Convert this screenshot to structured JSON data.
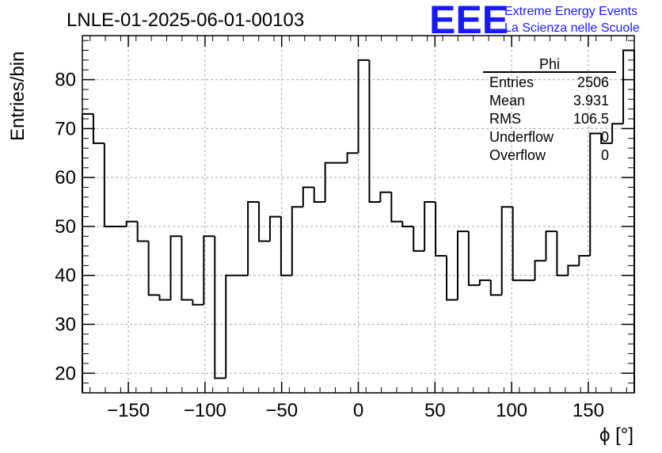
{
  "page_title": "LNLE-01-2025-06-01-00103",
  "logo": {
    "mark": "EEE",
    "line1": "Extreme Energy Events",
    "line2": "La Scienza nelle Scuole",
    "color": "#1a1aff"
  },
  "stats_box": {
    "name": "Phi",
    "rows": [
      {
        "label": "Entries",
        "value": "2506"
      },
      {
        "label": "Mean",
        "value": "3.931"
      },
      {
        "label": "RMS",
        "value": "106.5"
      },
      {
        "label": "Underflow",
        "value": "0"
      },
      {
        "label": "Overflow",
        "value": "0"
      }
    ]
  },
  "chart_data": {
    "type": "bar",
    "style": "step-histogram",
    "title": "LNLE-01-2025-06-01-00103",
    "xlabel": "ϕ [°]",
    "ylabel": "Entries/bin",
    "xlim": [
      -180,
      180
    ],
    "ylim": [
      16,
      89
    ],
    "bin_width": 7.2,
    "x_ticks": [
      -150,
      -100,
      -50,
      0,
      50,
      100,
      150
    ],
    "x_tick_labels": [
      "−150",
      "−100",
      "−50",
      "0",
      "50",
      "100",
      "150"
    ],
    "y_ticks": [
      20,
      30,
      40,
      50,
      60,
      70,
      80
    ],
    "grid": true,
    "values": [
      73,
      67,
      50,
      50,
      51,
      47,
      36,
      35,
      48,
      35,
      34,
      48,
      19,
      40,
      40,
      55,
      47,
      52,
      40,
      54,
      58,
      55,
      63,
      63,
      65,
      84,
      55,
      57,
      51,
      50,
      45,
      55,
      44,
      35,
      49,
      38,
      39,
      36,
      54,
      39,
      39,
      43,
      49,
      40,
      42,
      44,
      69,
      67,
      71,
      86
    ]
  }
}
